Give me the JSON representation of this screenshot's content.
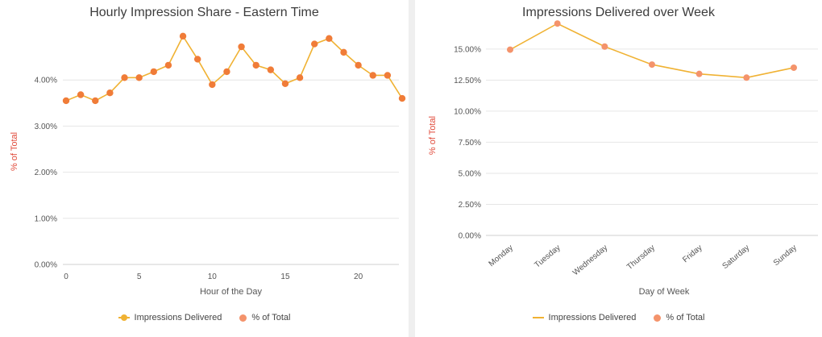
{
  "colors": {
    "line": "#f0b233",
    "point": "#f07c38",
    "point_light": "#f4936b",
    "grid": "#e6e6e6",
    "ylabel": "#e04a3a"
  },
  "chart_data": [
    {
      "type": "line",
      "title": "Hourly Impression Share - Eastern Time",
      "xlabel": "Hour of the Day",
      "ylabel": "% of Total",
      "x": [
        0,
        1,
        2,
        3,
        4,
        5,
        6,
        7,
        8,
        9,
        10,
        11,
        12,
        13,
        14,
        15,
        16,
        17,
        18,
        19,
        20,
        21,
        22,
        23
      ],
      "values": [
        3.55,
        3.68,
        3.55,
        3.72,
        4.05,
        4.05,
        4.18,
        4.32,
        4.95,
        4.45,
        3.9,
        4.18,
        4.72,
        4.32,
        4.22,
        3.92,
        4.05,
        4.78,
        4.9,
        4.6,
        4.32,
        4.1,
        4.1,
        3.6
      ],
      "xlim": [
        0,
        23
      ],
      "ylim": [
        0,
        5
      ],
      "xticks": [
        0,
        5,
        10,
        15,
        20
      ],
      "yticks": [
        0,
        1,
        2,
        3,
        4
      ],
      "ytick_labels": [
        "0.00%",
        "1.00%",
        "2.00%",
        "3.00%",
        "4.00%"
      ],
      "legend": [
        "Impressions Delivered",
        "% of Total"
      ],
      "grid": true
    },
    {
      "type": "line",
      "title": "Impressions Delivered over Week",
      "xlabel": "Day of Week",
      "ylabel": "% of Total",
      "categories": [
        "Monday",
        "Tuesday",
        "Wednesday",
        "Thursday",
        "Friday",
        "Saturday",
        "Sunday"
      ],
      "values": [
        14.95,
        17.05,
        15.2,
        13.75,
        13.0,
        12.7,
        13.5
      ],
      "ylim": [
        0,
        17
      ],
      "yticks": [
        0,
        2.5,
        5,
        7.5,
        10,
        12.5,
        15
      ],
      "ytick_labels": [
        "0.00%",
        "2.50%",
        "5.00%",
        "7.50%",
        "10.00%",
        "12.50%",
        "15.00%"
      ],
      "legend": [
        "Impressions Delivered",
        "% of Total"
      ],
      "grid": true
    }
  ]
}
